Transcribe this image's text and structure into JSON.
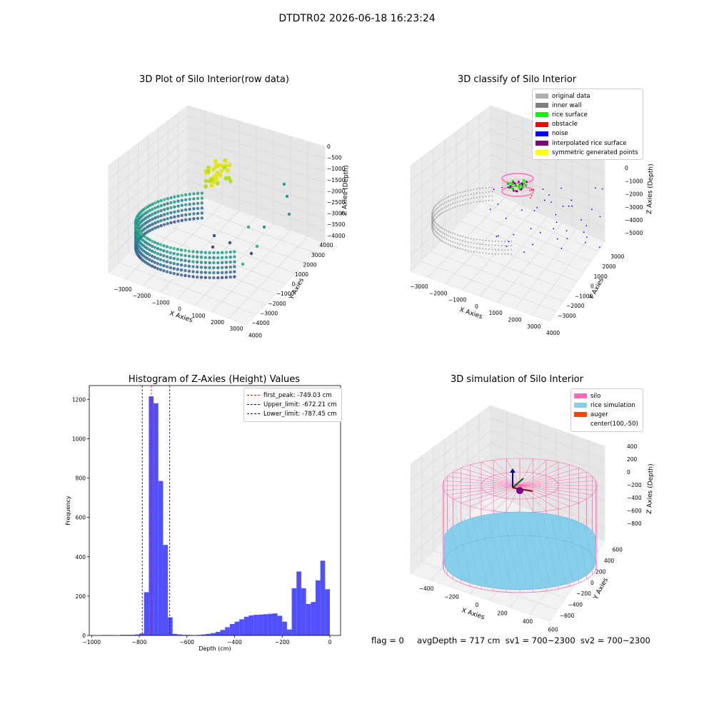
{
  "suptitle": "DTDTR02 2026-06-18 16:23:24",
  "status": {
    "flag": "flag = 0",
    "avgDepth": "avgDepth = 717 cm",
    "sv1": "sv1 = 700~2300",
    "sv2": "sv2 = 700~2300"
  },
  "colors": {
    "histogram_bar": "#5050ff",
    "peak_line": "#ff0000",
    "limit_line": "#00008b",
    "silo": "#ff69b4",
    "rice": "#87ceeb",
    "auger": "#ff4500"
  },
  "panel1": {
    "title": "3D Plot of Silo Interior(row data)",
    "xlabel": "X Axies",
    "ylabel": "Y Axies",
    "zlabel": "Z Axies (Depth)",
    "xticks": [
      "−3000",
      "−2000",
      "−1000",
      "0",
      "1000",
      "2000",
      "3000",
      "4000"
    ],
    "yticks": [
      "−4000",
      "−3000",
      "−2000",
      "−1000",
      "0",
      "1000",
      "2000",
      "3000",
      "4000"
    ],
    "zticks": [
      "0",
      "−500",
      "−1000",
      "−1500",
      "−2000",
      "−2500",
      "−3000",
      "−3500",
      "−4000"
    ]
  },
  "panel2": {
    "title": "3D classify of Silo Interior",
    "xlabel": "X Axies",
    "ylabel": "Y Axies",
    "zlabel": "Z Axies (Depth)",
    "xticks": [
      "−3000",
      "−2000",
      "−1000",
      "0",
      "1000",
      "2000",
      "3000",
      "4000"
    ],
    "yticks": [
      "−3000",
      "−2000",
      "−1000",
      "0",
      "1000",
      "2000",
      "3000"
    ],
    "zticks": [
      "1000",
      "0",
      "−1000",
      "−2000",
      "−3000",
      "−4000",
      "−5000"
    ],
    "legend": [
      {
        "label": "original data",
        "color": "#b0b0b0"
      },
      {
        "label": "inner wall",
        "color": "#808080"
      },
      {
        "label": "rice surface",
        "color": "#00ff00"
      },
      {
        "label": "obstacle",
        "color": "#ff0000"
      },
      {
        "label": "noise",
        "color": "#0000ff"
      },
      {
        "label": "interpolated rice surface",
        "color": "#800080"
      },
      {
        "label": "symmetric generated points",
        "color": "#ffff00"
      }
    ]
  },
  "panel3": {
    "legend": [
      {
        "label": "first_peak: -749.03 cm",
        "color": "#ff0000"
      },
      {
        "label": "Upper_limit: -672.21 cm",
        "color": "#00008b"
      },
      {
        "label": "Lower_limit: -787.45 cm",
        "color": "#00008b"
      }
    ]
  },
  "panel4": {
    "title": "3D simulation of Silo Interior",
    "xlabel": "X Axies",
    "ylabel": "Y Axies",
    "zlabel": "Z Axies (Depth)",
    "xticks": [
      "−400",
      "−200",
      "0",
      "200",
      "400",
      "600"
    ],
    "yticks": [
      "−600",
      "−400",
      "−200",
      "0",
      "200",
      "400",
      "600"
    ],
    "zticks": [
      "400",
      "200",
      "0",
      "−200",
      "−400",
      "−600",
      "−800"
    ],
    "legend": [
      {
        "label": "silo",
        "color": "#ff69b4"
      },
      {
        "label": "rice simulation",
        "color": "#87ceeb"
      },
      {
        "label": "auger",
        "color": "#ff4500"
      },
      {
        "label": "center(100,-50)",
        "color": ""
      }
    ]
  },
  "chart_data": [
    {
      "type": "scatter",
      "title": "3D Plot of Silo Interior(row data)",
      "xlabel": "X Axies",
      "ylabel": "Y Axies",
      "zlabel": "Z Axies (Depth)",
      "xlim": [
        -3500,
        4200
      ],
      "ylim": [
        -4200,
        4200
      ],
      "zlim": [
        -4200,
        200
      ]
    },
    {
      "type": "scatter",
      "title": "3D classify of Silo Interior",
      "xlabel": "X Axies",
      "ylabel": "Y Axies",
      "zlabel": "Z Axies (Depth)",
      "xlim": [
        -3500,
        4200
      ],
      "ylim": [
        -3500,
        3500
      ],
      "zlim": [
        -5500,
        1200
      ],
      "legend": [
        "original data",
        "inner wall",
        "rice surface",
        "obstacle",
        "noise",
        "interpolated rice surface",
        "symmetric generated points"
      ]
    },
    {
      "type": "bar",
      "title": "Histogram of Z-Axies (Height) Values",
      "xlabel": "Depth (cm)",
      "ylabel": "Frequency",
      "xlim": [
        -1010,
        45
      ],
      "ylim": [
        0,
        1270
      ],
      "xticks": [
        -1000,
        -800,
        -600,
        -400,
        -200,
        0
      ],
      "yticks": [
        0,
        200,
        400,
        600,
        800,
        1000,
        1200
      ],
      "bin_width": 20,
      "bin_starts": [
        -960,
        -940,
        -920,
        -900,
        -880,
        -860,
        -840,
        -820,
        -800,
        -780,
        -760,
        -740,
        -720,
        -700,
        -680,
        -660,
        -640,
        -620,
        -600,
        -580,
        -560,
        -540,
        -520,
        -500,
        -480,
        -460,
        -440,
        -420,
        -400,
        -380,
        -360,
        -340,
        -320,
        -300,
        -280,
        -260,
        -240,
        -220,
        -200,
        -180,
        -160,
        -140,
        -120,
        -100,
        -80,
        -60,
        -40,
        -20
      ],
      "values": [
        2,
        2,
        2,
        0,
        3,
        3,
        3,
        5,
        10,
        220,
        1215,
        1180,
        785,
        460,
        92,
        8,
        5,
        3,
        3,
        2,
        3,
        5,
        8,
        12,
        18,
        28,
        42,
        58,
        70,
        82,
        95,
        102,
        105,
        106,
        108,
        110,
        112,
        100,
        70,
        30,
        240,
        325,
        240,
        160,
        170,
        280,
        380,
        235
      ],
      "vlines": [
        {
          "label": "first_peak: -749.03 cm",
          "x": -749.03,
          "color": "#ff0000"
        },
        {
          "label": "Upper_limit: -672.21 cm",
          "x": -672.21,
          "color": "#00008b"
        },
        {
          "label": "Lower_limit: -787.45 cm",
          "x": -787.45,
          "color": "#00008b"
        }
      ]
    },
    {
      "type": "scatter",
      "title": "3D simulation of Silo Interior",
      "xlabel": "X Axies",
      "ylabel": "Y Axies",
      "zlabel": "Z Axies (Depth)",
      "xlim": [
        -550,
        750
      ],
      "ylim": [
        -700,
        700
      ],
      "zlim": [
        -900,
        450
      ],
      "legend": [
        "silo",
        "rice simulation",
        "auger",
        "center(100,-50)"
      ]
    }
  ]
}
